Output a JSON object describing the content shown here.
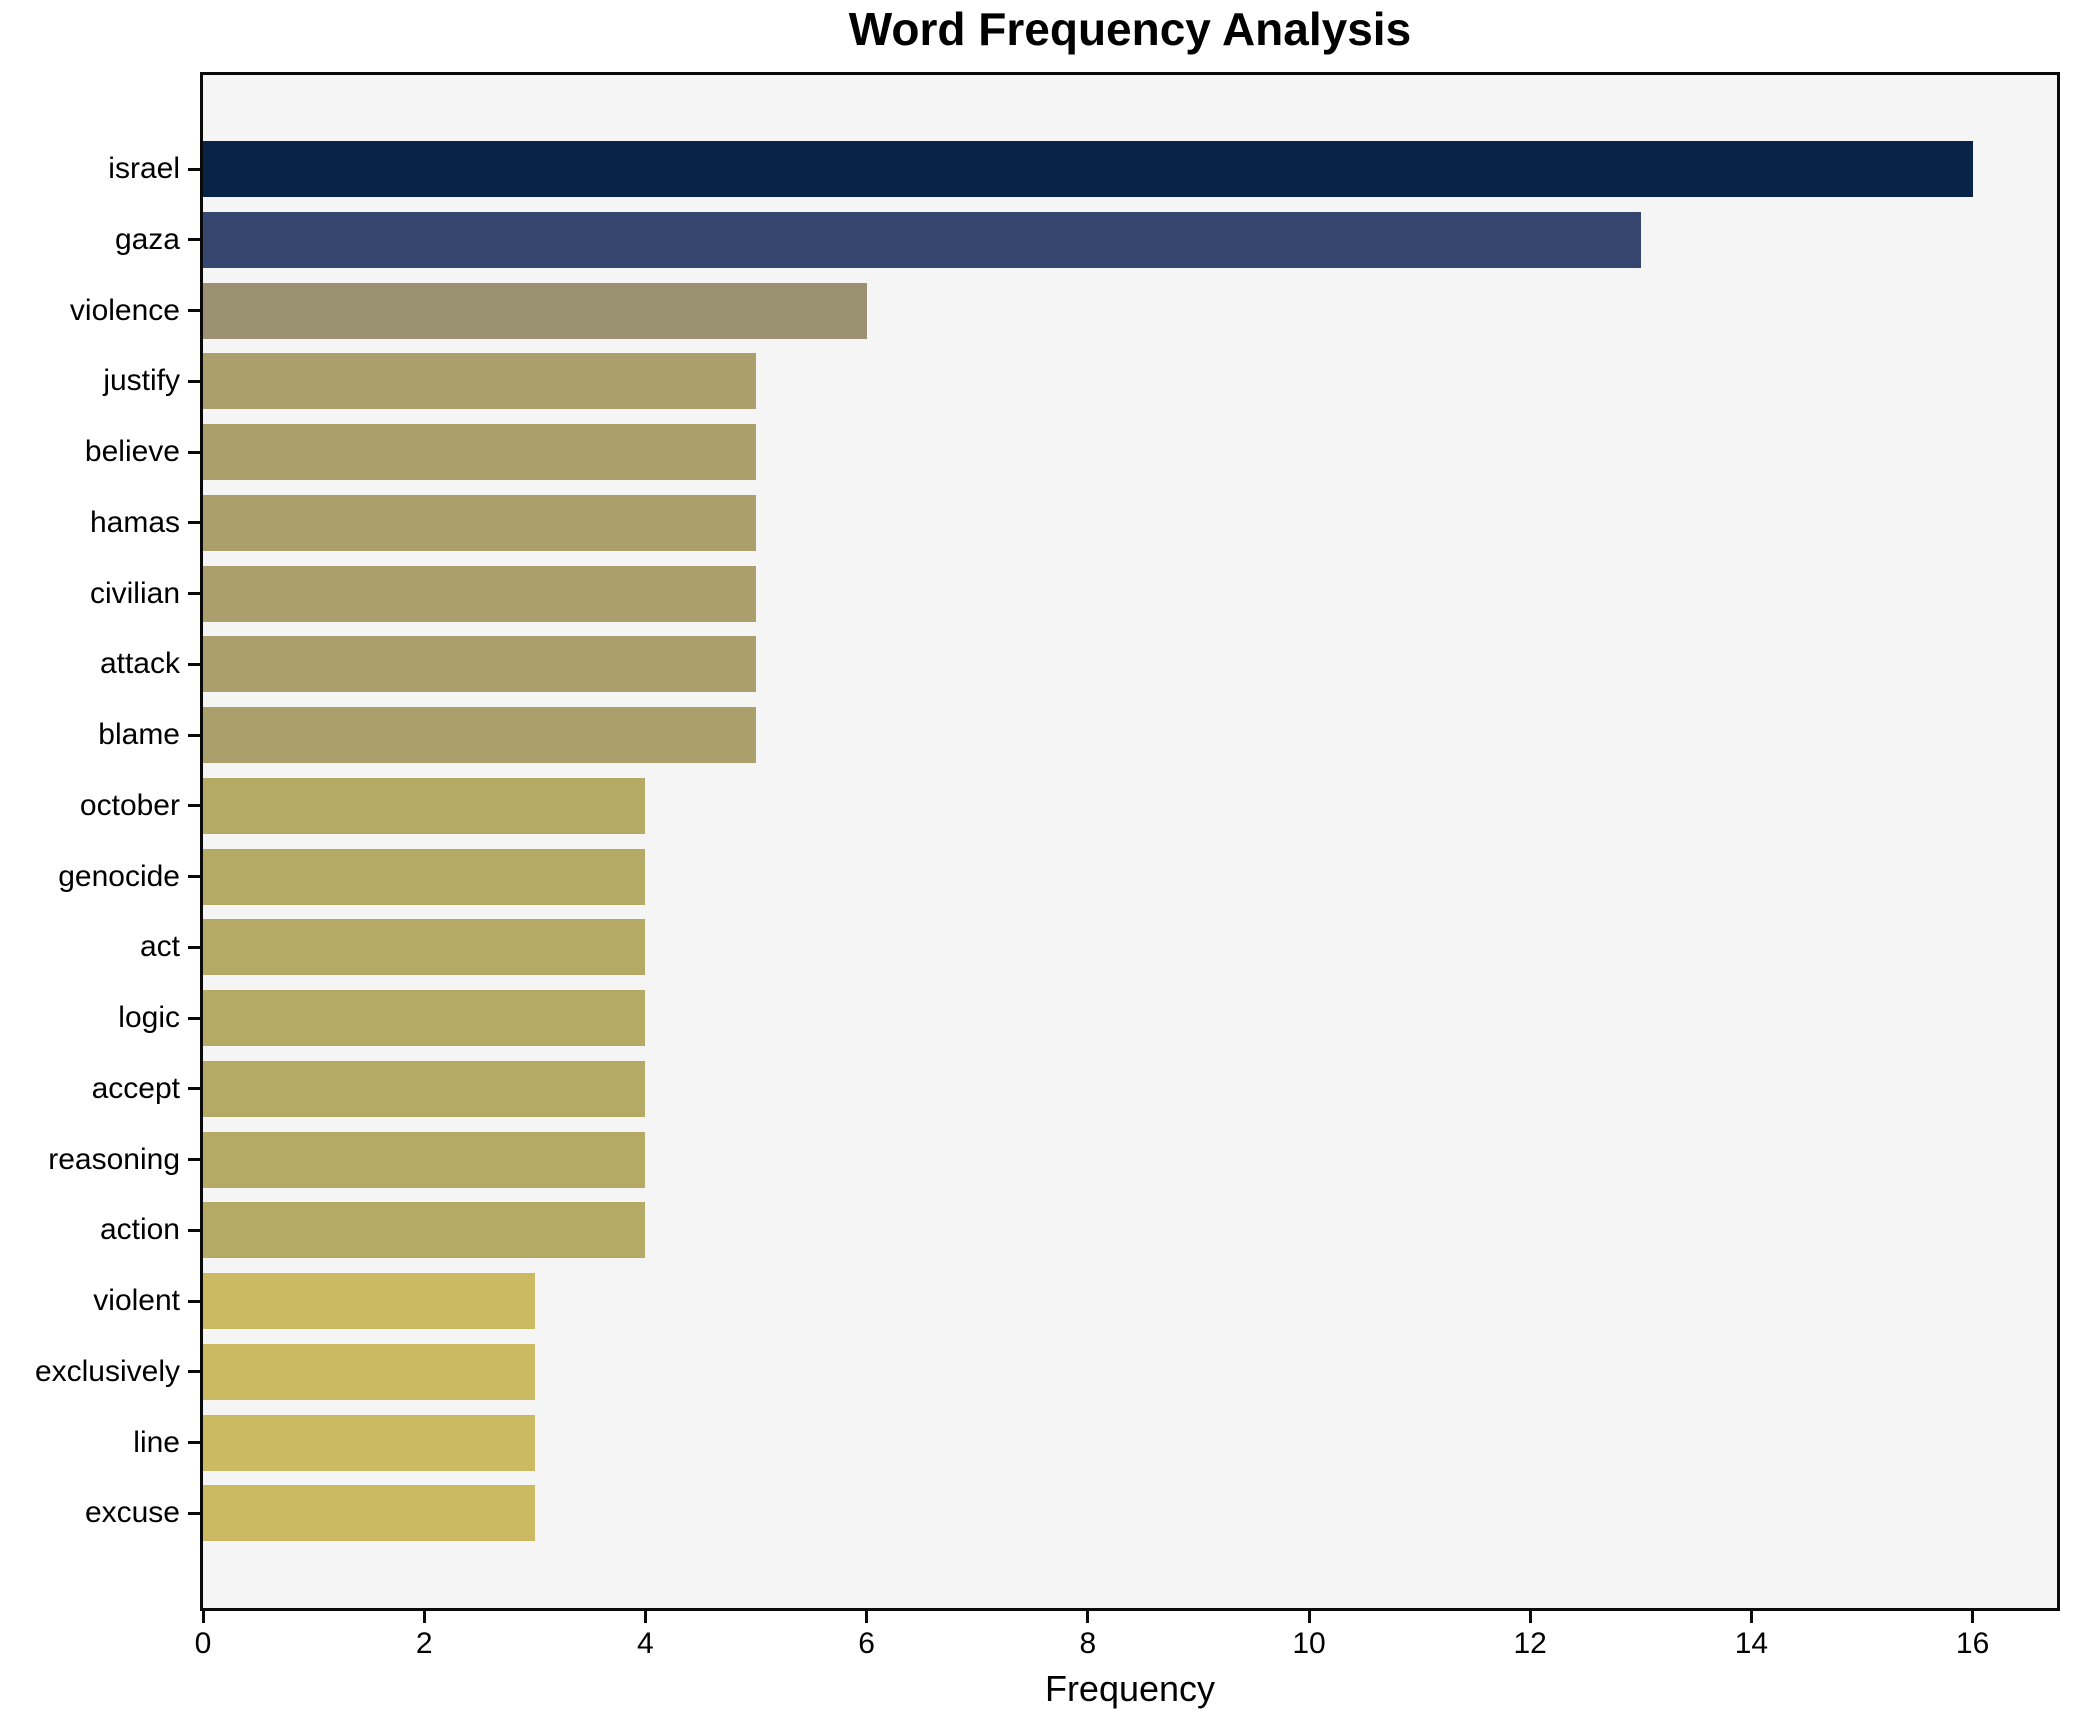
{
  "chart_data": {
    "type": "bar",
    "orientation": "horizontal",
    "title": "Word Frequency Analysis",
    "xlabel": "Frequency",
    "ylabel": "",
    "categories": [
      "israel",
      "gaza",
      "violence",
      "justify",
      "believe",
      "hamas",
      "civilian",
      "attack",
      "blame",
      "october",
      "genocide",
      "act",
      "logic",
      "accept",
      "reasoning",
      "action",
      "violent",
      "exclusively",
      "line",
      "excuse"
    ],
    "values": [
      16,
      13,
      6,
      5,
      5,
      5,
      5,
      5,
      5,
      4,
      4,
      4,
      4,
      4,
      4,
      4,
      3,
      3,
      3,
      3
    ],
    "bar_colors": [
      "#082347",
      "#36476f",
      "#9a9270",
      "#aba06c",
      "#aba06c",
      "#aba06c",
      "#aba06c",
      "#aba06c",
      "#aba06c",
      "#b5aa65",
      "#b5aa65",
      "#b5aa65",
      "#b5aa65",
      "#b5aa65",
      "#b5aa65",
      "#b5aa65",
      "#ccba62",
      "#ccba62",
      "#ccba62",
      "#ccba62"
    ],
    "x_ticks": [
      0,
      2,
      4,
      6,
      8,
      10,
      12,
      14,
      16
    ],
    "xlim": [
      0,
      16.8
    ],
    "grid": false,
    "legend": null,
    "plot_background": "#f5f5f5",
    "figure_background": "#ffffff",
    "spine_color": "#0a0a0a",
    "text_color": "#000000"
  }
}
